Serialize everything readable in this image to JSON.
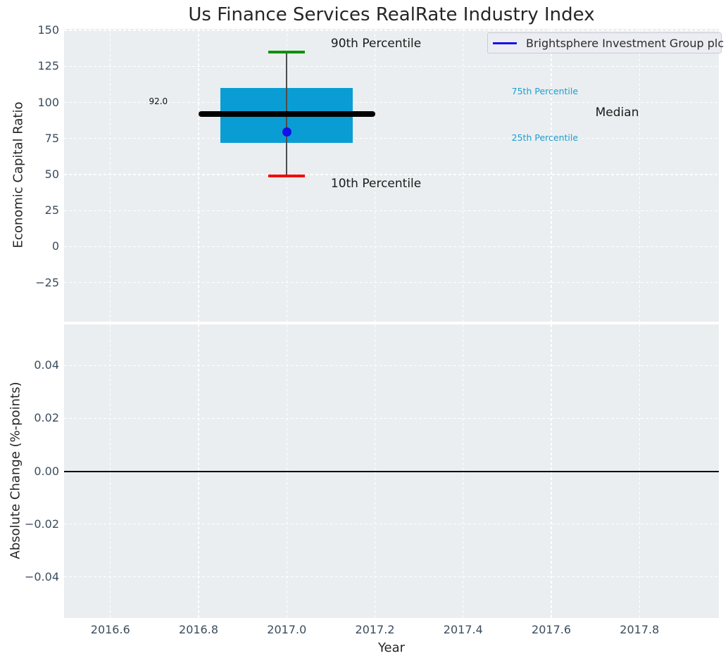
{
  "figure_title": "Us Finance Services RealRate Industry Index",
  "colors": {
    "figure_bg": "#ffffff",
    "axes_bg": "#eaeef0",
    "grid": "#ffffff",
    "box_fill": "#0a9dd4",
    "whisker": "#4d4d4d",
    "cap_90th": "#0a930a",
    "cap_10th": "#f50000",
    "median_line": "#000000",
    "company_dot": "#1310e8",
    "legend_line": "#1212ef",
    "tick_text": "#3b4c5e",
    "annotation_dark": "#1a1a1a",
    "annotation_cyan": "#1f9dcf"
  },
  "chart_data": [
    {
      "type": "box",
      "subplot": "top",
      "title": "Us Finance Services RealRate Industry Index",
      "xlabel": "Year",
      "ylabel": "Economic Capital Ratio",
      "xlim": [
        2016.495,
        2017.98
      ],
      "ylim": [
        -52,
        151
      ],
      "xticks": [
        2016.6,
        2016.8,
        2017.0,
        2017.2,
        2017.4,
        2017.6,
        2017.8
      ],
      "yticks": [
        150,
        125,
        100,
        75,
        50,
        25,
        0,
        -25
      ],
      "grid": true,
      "legend": {
        "label": "Brightsphere Investment Group plc",
        "position": "upper right"
      },
      "box": {
        "x_center": 2017.0,
        "x_left": 2016.85,
        "x_right": 2017.15,
        "p10": 49,
        "p25": 72,
        "median": 92,
        "p75": 110,
        "p90": 135,
        "median_line": {
          "x_start": 2016.8,
          "x_end": 2017.2,
          "value": 92,
          "label": "92.0"
        }
      },
      "company_point": {
        "label": "Brightsphere Investment Group plc",
        "x": 2017.0,
        "y": 79.5
      },
      "annotations": [
        {
          "text": "90th Percentile",
          "x": 2017.1,
          "y": 140,
          "size": 17,
          "color": "#1a1a1a",
          "ha": "left"
        },
        {
          "text": "10th Percentile",
          "x": 2017.1,
          "y": 43,
          "size": 17,
          "color": "#1a1a1a",
          "ha": "left"
        },
        {
          "text": "Median",
          "x": 2017.7,
          "y": 92,
          "size": 17,
          "color": "#1a1a1a",
          "ha": "left"
        },
        {
          "text": "75th Percentile",
          "x": 2017.51,
          "y": 107,
          "size": 12.5,
          "color": "#1f9dcf",
          "ha": "left"
        },
        {
          "text": "25th Percentile",
          "x": 2017.51,
          "y": 75,
          "size": 12.5,
          "color": "#1f9dcf",
          "ha": "left"
        },
        {
          "text": "92.0",
          "x": 2016.73,
          "y": 100,
          "size": 12,
          "color": "#111111",
          "ha": "right"
        }
      ]
    },
    {
      "type": "line",
      "subplot": "bottom",
      "xlabel": "Year",
      "ylabel": "Absolute Change (%-points)",
      "xlim": [
        2016.495,
        2017.98
      ],
      "ylim": [
        -0.0555,
        0.0555
      ],
      "xticks": [
        2016.6,
        2016.8,
        2017.0,
        2017.2,
        2017.4,
        2017.6,
        2017.8
      ],
      "yticks": [
        0.04,
        0.02,
        0.0,
        -0.02,
        -0.04
      ],
      "grid": true,
      "zero_line": 0.0,
      "series": []
    }
  ]
}
